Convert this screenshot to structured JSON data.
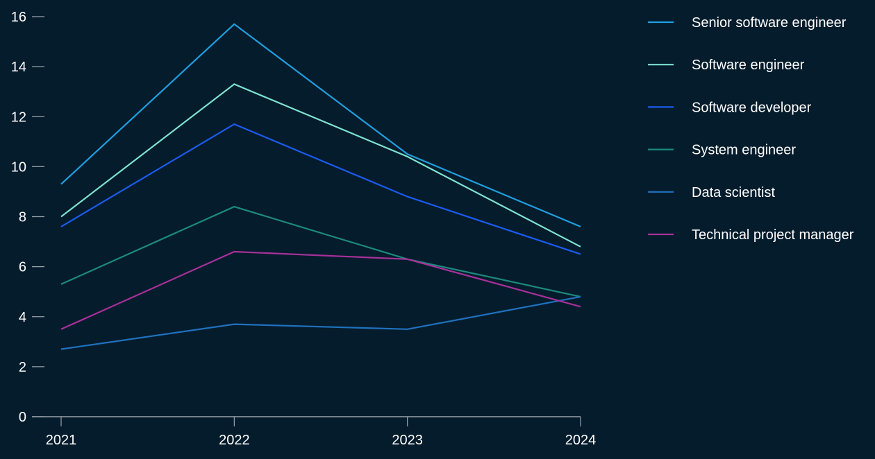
{
  "chart_data": {
    "type": "line",
    "title": "",
    "xlabel": "",
    "ylabel": "",
    "categories": [
      "2021",
      "2022",
      "2023",
      "2024"
    ],
    "ylim": [
      0,
      16
    ],
    "yticks": [
      0,
      2,
      4,
      6,
      8,
      10,
      12,
      14,
      16
    ],
    "grid": false,
    "legend_position": "right",
    "series": [
      {
        "name": "Senior software engineer",
        "color": "#1f9fe0",
        "values": [
          9.3,
          15.7,
          10.5,
          7.6
        ]
      },
      {
        "name": "Software engineer",
        "color": "#7de2d1",
        "values": [
          8.0,
          13.3,
          10.4,
          6.8
        ]
      },
      {
        "name": "Software developer",
        "color": "#1a5cf0",
        "values": [
          7.6,
          11.7,
          8.8,
          6.5
        ]
      },
      {
        "name": "System engineer",
        "color": "#1c8a7e",
        "values": [
          5.3,
          8.4,
          6.3,
          4.8
        ]
      },
      {
        "name": "Data scientist",
        "color": "#1f72c0",
        "values": [
          2.7,
          3.7,
          3.5,
          4.8
        ]
      },
      {
        "name": "Technical project manager",
        "color": "#a8309a",
        "values": [
          3.5,
          6.6,
          6.3,
          4.4
        ]
      }
    ]
  }
}
